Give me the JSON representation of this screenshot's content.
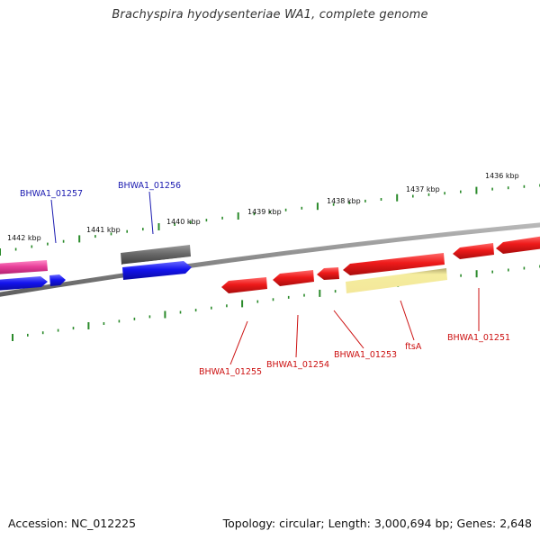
{
  "title": "Brachyspira hyodysenteriae WA1, complete genome",
  "footer": {
    "accession": "Accession: NC_012225",
    "summary": "Topology: circular; Length: 3,000,694 bp; Genes: 2,648"
  },
  "colors": {
    "backbone": "#7f7f7f",
    "tick": "#2a8a2a",
    "tick_label": "#111111",
    "gene_red": "#e8141c",
    "gene_blue": "#1a1ae6",
    "gene_pink": "#e8409a",
    "gene_gray": "#6b6b6b",
    "gene_yellow": "#f3ea9c",
    "label_red": "#cc1010",
    "label_blue": "#1a1ab0"
  },
  "ticks": [
    {
      "label": "1436 kbp"
    },
    {
      "label": "1437 kbp"
    },
    {
      "label": "1438 kbp"
    },
    {
      "label": "1439 kbp"
    },
    {
      "label": "1440 kbp"
    },
    {
      "label": "1441 kbp"
    },
    {
      "label": "1442 kbp"
    }
  ],
  "genes": [
    {
      "label": "BHWA1_01257",
      "strand": "forward",
      "color": "blue"
    },
    {
      "label": "BHWA1_01256",
      "strand": "forward",
      "color": "blue"
    },
    {
      "label": "BHWA1_01255",
      "strand": "reverse",
      "color": "red"
    },
    {
      "label": "BHWA1_01254",
      "strand": "reverse",
      "color": "red"
    },
    {
      "label": "BHWA1_01253",
      "strand": "reverse",
      "color": "red"
    },
    {
      "label": "ftsA",
      "strand": "reverse",
      "color": "red"
    },
    {
      "label": "BHWA1_01251",
      "strand": "reverse",
      "color": "red"
    }
  ]
}
